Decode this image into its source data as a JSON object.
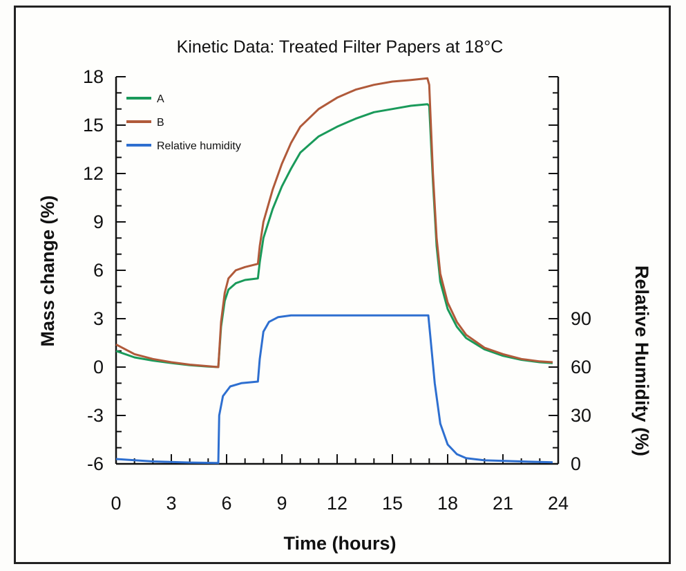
{
  "chart_data": {
    "type": "line",
    "title": "Kinetic Data: Treated Filter Papers at 18°C",
    "xlabel": "Time (hours)",
    "ylabel": "Mass change (%)",
    "y2label": "Relative Humidity (%)",
    "xlim": [
      0,
      24
    ],
    "ylim": [
      -6,
      18
    ],
    "y2lim": [
      0,
      90
    ],
    "xticks": [
      "0",
      "3",
      "6",
      "9",
      "12",
      "15",
      "18",
      "21",
      "24"
    ],
    "yticks": [
      "-6",
      "-3",
      "0",
      "3",
      "6",
      "9",
      "12",
      "15",
      "18"
    ],
    "y2ticks": [
      "0",
      "30",
      "60",
      "90"
    ],
    "legend_position": "top-left",
    "grid": false,
    "series": [
      {
        "name": "A",
        "color": "#1a9a5a",
        "axis": "left",
        "points": [
          [
            0,
            1.0
          ],
          [
            1,
            0.6
          ],
          [
            2,
            0.4
          ],
          [
            3,
            0.25
          ],
          [
            4,
            0.12
          ],
          [
            5,
            0.03
          ],
          [
            5.55,
            0.0
          ],
          [
            5.7,
            2.5
          ],
          [
            5.9,
            4.1
          ],
          [
            6.1,
            4.8
          ],
          [
            6.5,
            5.2
          ],
          [
            7,
            5.4
          ],
          [
            7.7,
            5.5
          ],
          [
            7.8,
            6.5
          ],
          [
            8,
            8.0
          ],
          [
            8.5,
            9.8
          ],
          [
            9,
            11.2
          ],
          [
            9.5,
            12.3
          ],
          [
            10,
            13.3
          ],
          [
            11,
            14.3
          ],
          [
            12,
            14.9
          ],
          [
            13,
            15.4
          ],
          [
            14,
            15.8
          ],
          [
            15,
            16.0
          ],
          [
            16,
            16.2
          ],
          [
            16.9,
            16.3
          ],
          [
            17.0,
            16.2
          ],
          [
            17.2,
            11.5
          ],
          [
            17.4,
            7.5
          ],
          [
            17.6,
            5.3
          ],
          [
            18,
            3.6
          ],
          [
            18.5,
            2.5
          ],
          [
            19,
            1.8
          ],
          [
            20,
            1.1
          ],
          [
            21,
            0.7
          ],
          [
            22,
            0.45
          ],
          [
            23,
            0.3
          ],
          [
            23.7,
            0.25
          ]
        ]
      },
      {
        "name": "B",
        "color": "#b05a3a",
        "axis": "left",
        "points": [
          [
            0,
            1.4
          ],
          [
            1,
            0.8
          ],
          [
            2,
            0.5
          ],
          [
            3,
            0.3
          ],
          [
            4,
            0.15
          ],
          [
            5,
            0.05
          ],
          [
            5.55,
            0.0
          ],
          [
            5.7,
            2.8
          ],
          [
            5.9,
            4.6
          ],
          [
            6.1,
            5.5
          ],
          [
            6.5,
            6.0
          ],
          [
            7,
            6.2
          ],
          [
            7.7,
            6.4
          ],
          [
            7.8,
            7.5
          ],
          [
            8,
            9.0
          ],
          [
            8.5,
            11.0
          ],
          [
            9,
            12.6
          ],
          [
            9.5,
            13.9
          ],
          [
            10,
            14.9
          ],
          [
            11,
            16.0
          ],
          [
            12,
            16.7
          ],
          [
            13,
            17.2
          ],
          [
            14,
            17.5
          ],
          [
            15,
            17.7
          ],
          [
            16,
            17.8
          ],
          [
            16.9,
            17.9
          ],
          [
            17.0,
            17.5
          ],
          [
            17.2,
            12.0
          ],
          [
            17.4,
            8.0
          ],
          [
            17.6,
            5.8
          ],
          [
            18,
            4.0
          ],
          [
            18.5,
            2.8
          ],
          [
            19,
            2.0
          ],
          [
            20,
            1.2
          ],
          [
            21,
            0.8
          ],
          [
            22,
            0.5
          ],
          [
            23,
            0.35
          ],
          [
            23.7,
            0.3
          ]
        ]
      },
      {
        "name": "Relative humidity",
        "color": "#2e6fd0",
        "axis": "right",
        "points": [
          [
            0,
            3.0
          ],
          [
            2,
            1.5
          ],
          [
            4,
            0.8
          ],
          [
            5.55,
            0.5
          ],
          [
            5.6,
            30
          ],
          [
            5.8,
            42
          ],
          [
            6.2,
            48
          ],
          [
            6.8,
            50
          ],
          [
            7.7,
            51
          ],
          [
            7.8,
            65
          ],
          [
            8.0,
            82
          ],
          [
            8.3,
            88
          ],
          [
            8.8,
            91
          ],
          [
            9.5,
            92
          ],
          [
            12,
            92
          ],
          [
            15,
            92
          ],
          [
            16.95,
            92
          ],
          [
            17.05,
            80
          ],
          [
            17.3,
            50
          ],
          [
            17.6,
            25
          ],
          [
            18,
            12
          ],
          [
            18.5,
            6
          ],
          [
            19,
            3.5
          ],
          [
            20,
            2.2
          ],
          [
            22,
            1.5
          ],
          [
            23.7,
            1.0
          ]
        ]
      }
    ]
  }
}
